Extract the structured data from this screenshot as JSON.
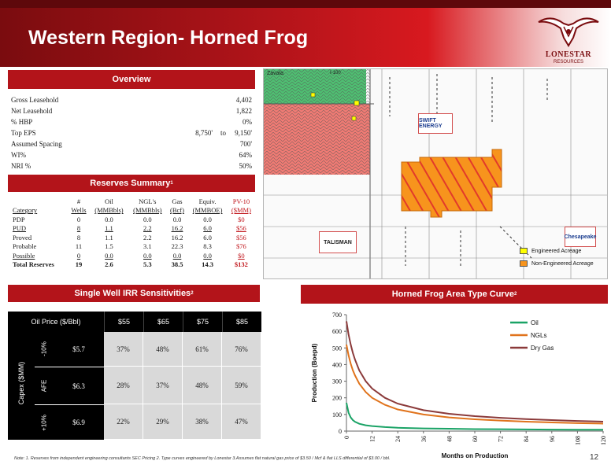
{
  "header": {
    "title": "Western Region- Horned Frog",
    "logo_name": "LONESTAR",
    "logo_sub": "RESOURCES"
  },
  "overview": {
    "heading": "Overview",
    "rows": [
      {
        "label": "Gross Leasehold",
        "value": "4,402"
      },
      {
        "label": "Net Leasehold",
        "value": "1,822"
      },
      {
        "label": "% HBP",
        "value": "0%"
      },
      {
        "label": "Top EPS",
        "value": "9,150'",
        "from": "8,750'",
        "sep": "to"
      },
      {
        "label": "Assumed Spacing",
        "value": "700'"
      },
      {
        "label": "WI%",
        "value": "64%"
      },
      {
        "label": "NRI %",
        "value": "50%"
      }
    ]
  },
  "reserves": {
    "heading": "Reserves Summary",
    "heading_sup": "1",
    "header_top": [
      "",
      "#",
      "Oil",
      "NGL's",
      "Gas",
      "Equiv.",
      "PV-10"
    ],
    "header_bottom": [
      "Category",
      "Wells",
      "(MMBbls)",
      "(MMBbls)",
      "(Bcf)",
      "(MMBOE)",
      "($MM)"
    ],
    "rows": [
      {
        "cells": [
          "PDP",
          "0",
          "0.0",
          "0.0",
          "0.0",
          "0.0",
          "$0"
        ],
        "style": ""
      },
      {
        "cells": [
          "PUD",
          "8",
          "1.1",
          "2.2",
          "16.2",
          "6.0",
          "$56"
        ],
        "style": "u"
      },
      {
        "cells": [
          "Proved",
          "8",
          "1.1",
          "2.2",
          "16.2",
          "6.0",
          "$56"
        ],
        "style": ""
      },
      {
        "cells": [
          "Probable",
          "11",
          "1.5",
          "3.1",
          "22.3",
          "8.3",
          "$76"
        ],
        "style": ""
      },
      {
        "cells": [
          "Possible",
          "0",
          "0.0",
          "0.0",
          "0.0",
          "0.0",
          "$0"
        ],
        "style": "u"
      },
      {
        "cells": [
          "Total Reserves",
          "19",
          "2.6",
          "5.3",
          "38.5",
          "14.3",
          "$132"
        ],
        "style": "b"
      }
    ]
  },
  "irr": {
    "heading": "Single Well IRR Sensitivities",
    "heading_sup": "2",
    "price_label": "Oil Price ($/Bbl)",
    "prices": [
      "$55",
      "$65",
      "$75",
      "$85"
    ],
    "capex_label": "Capex ($MM)",
    "rows": [
      {
        "side": "-10%",
        "afe": "$5.7",
        "values": [
          "37%",
          "48%",
          "61%",
          "76%"
        ]
      },
      {
        "side": "AFE",
        "afe": "$6.3",
        "values": [
          "28%",
          "37%",
          "48%",
          "59%"
        ]
      },
      {
        "side": "+10%",
        "afe": "$6.9",
        "values": [
          "22%",
          "29%",
          "38%",
          "47%"
        ]
      }
    ]
  },
  "map": {
    "county": "Zavala",
    "city": "I-100",
    "legend": [
      {
        "label": "Engineered Acreage",
        "color": "#ffff00"
      },
      {
        "label": "Non-Engineered Acreage",
        "color": "#f7941d"
      }
    ],
    "operators": [
      "SWIFT ENERGY",
      "TALISMAN",
      "Chesapeake"
    ],
    "colors": {
      "acreage": "#f7941d",
      "hatch": "#e23a2a",
      "green": "#4fbf72",
      "red": "#f07b74"
    }
  },
  "type_curve": {
    "heading": "Horned Frog Area Type Curve",
    "heading_sup": "2"
  },
  "chart_data": {
    "type": "line",
    "title": "",
    "xlabel": "Months on Production",
    "ylabel": "Production (Boepd)",
    "x_ticks": [
      0,
      12,
      24,
      36,
      48,
      60,
      72,
      84,
      96,
      108,
      120
    ],
    "y_ticks": [
      0,
      100,
      200,
      300,
      400,
      500,
      600,
      700
    ],
    "xlim": [
      0,
      120
    ],
    "ylim": [
      0,
      700
    ],
    "grid": false,
    "legend_position": "top-right",
    "x": [
      0,
      1,
      2,
      3,
      4,
      6,
      9,
      12,
      18,
      24,
      36,
      48,
      60,
      72,
      84,
      96,
      108,
      120
    ],
    "series": [
      {
        "name": "Oil",
        "color": "#1aa366",
        "values": [
          170,
          110,
          82,
          66,
          56,
          44,
          35,
          30,
          24,
          20,
          16,
          14,
          12,
          11,
          10,
          9,
          8,
          8
        ]
      },
      {
        "name": "NGLs",
        "color": "#e0731c",
        "values": [
          520,
          455,
          405,
          365,
          335,
          285,
          235,
          200,
          158,
          130,
          100,
          82,
          71,
          63,
          57,
          52,
          48,
          45
        ]
      },
      {
        "name": "Dry Gas",
        "color": "#8b3a3a",
        "values": [
          660,
          580,
          520,
          470,
          430,
          365,
          300,
          256,
          200,
          165,
          126,
          104,
          90,
          80,
          72,
          66,
          61,
          57
        ]
      }
    ]
  },
  "footer": {
    "note": "Note:  1. Reserves from independent engineering consultants SEC Pricing  2. Type curves engineered by Lonestar  3.Assumes flat natural gas price of $3.50 / Mcf & flat LLS differential of $3.00 / bbl.",
    "page": "12"
  }
}
